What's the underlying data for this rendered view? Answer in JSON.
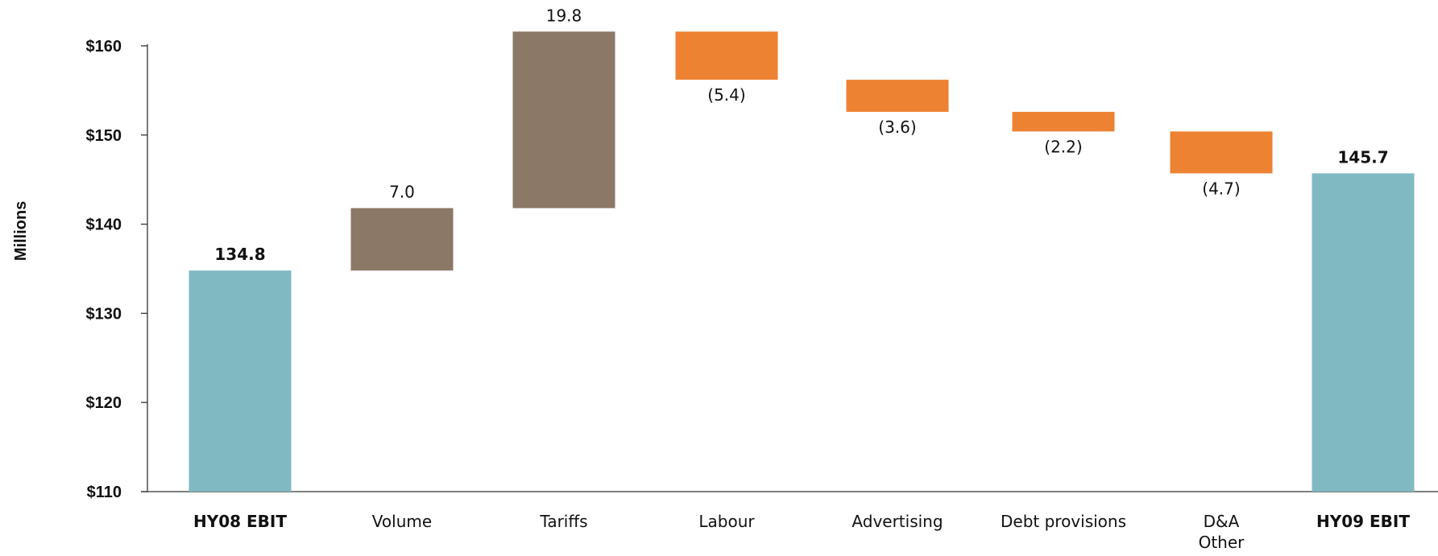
{
  "chart_data": {
    "type": "bar",
    "subtype": "waterfall",
    "ylabel": "Millions",
    "ylim": [
      110,
      160
    ],
    "yticks": [
      110,
      120,
      130,
      140,
      150,
      160
    ],
    "ytick_labels": [
      "$110",
      "$120",
      "$130",
      "$140",
      "$150",
      "$160"
    ],
    "grid": false,
    "categories": [
      {
        "label": "HY08 EBIT",
        "label_lines": [
          "HY08 EBIT"
        ],
        "kind": "total",
        "value": 134.8,
        "data_label": "134.8",
        "bold": true
      },
      {
        "label": "Volume",
        "label_lines": [
          "Volume"
        ],
        "kind": "increase",
        "value": 7.0,
        "data_label": "7.0",
        "bold": false
      },
      {
        "label": "Tariffs",
        "label_lines": [
          "Tariffs"
        ],
        "kind": "increase",
        "value": 19.8,
        "data_label": "19.8",
        "bold": false
      },
      {
        "label": "Labour",
        "label_lines": [
          "Labour"
        ],
        "kind": "decrease",
        "value": -5.4,
        "data_label": "(5.4)",
        "bold": false
      },
      {
        "label": "Advertising",
        "label_lines": [
          "Advertising"
        ],
        "kind": "decrease",
        "value": -3.6,
        "data_label": "(3.6)",
        "bold": false
      },
      {
        "label": "Debt provisions",
        "label_lines": [
          "Debt provisions"
        ],
        "kind": "decrease",
        "value": -2.2,
        "data_label": "(2.2)",
        "bold": false
      },
      {
        "label": "D&A Other",
        "label_lines": [
          "D&A",
          "Other"
        ],
        "kind": "decrease",
        "value": -4.7,
        "data_label": "(4.7)",
        "bold": false
      },
      {
        "label": "HY09 EBIT",
        "label_lines": [
          "HY09 EBIT"
        ],
        "kind": "total",
        "value": 145.7,
        "data_label": "145.7",
        "bold": true
      }
    ],
    "colors": {
      "total": "#80b9c1",
      "increase": "#8b7867",
      "decrease": "#ed8233",
      "axis": "#333333",
      "text": "#111111"
    }
  }
}
